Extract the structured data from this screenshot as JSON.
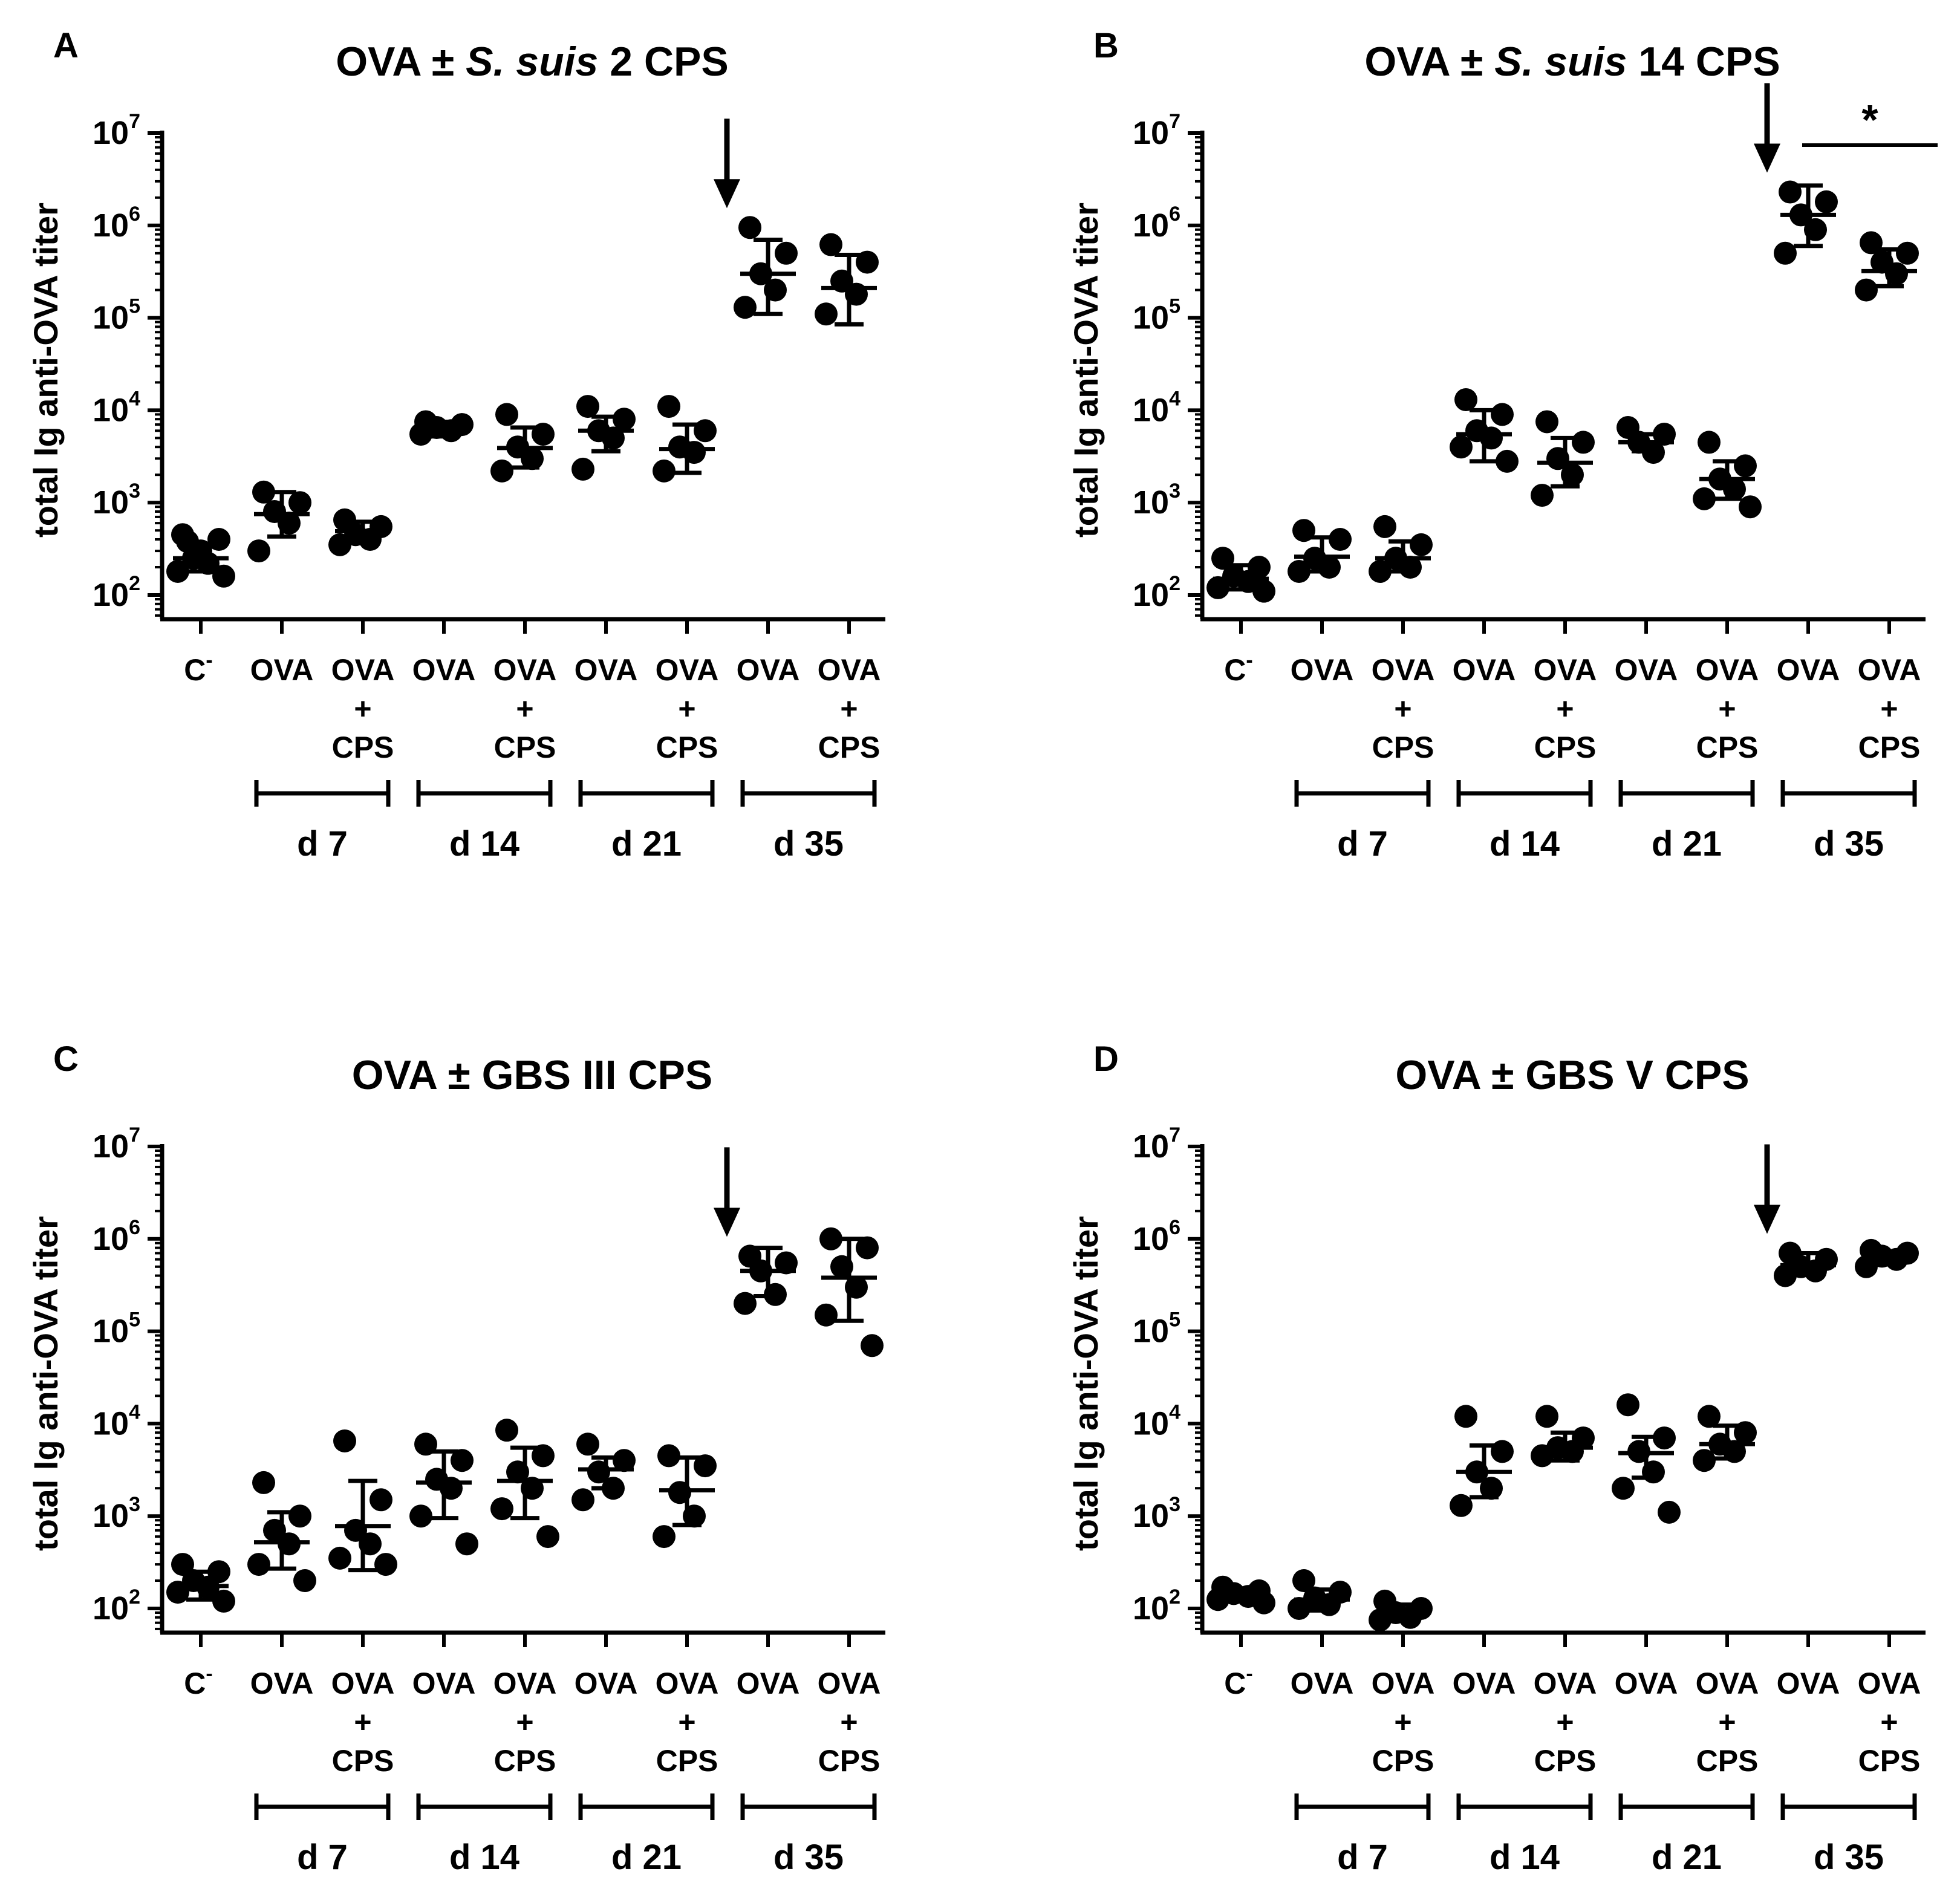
{
  "colors": {
    "ink": "#000000",
    "background": "#ffffff"
  },
  "chart_data": [
    {
      "panel_label": "A",
      "type": "scatter",
      "title_parts": [
        "OVA",
        " ± ",
        "S. suis",
        " 2 CPS"
      ],
      "ylabel": "total Ig anti-OVA titer",
      "yscale": "log10",
      "ylim": [
        50,
        10000000
      ],
      "yticks": [
        {
          "base": "10",
          "exp": "2",
          "value": 100
        },
        {
          "base": "10",
          "exp": "3",
          "value": 1000
        },
        {
          "base": "10",
          "exp": "4",
          "value": 10000
        },
        {
          "base": "10",
          "exp": "5",
          "value": 100000
        },
        {
          "base": "10",
          "exp": "6",
          "value": 1000000
        },
        {
          "base": "10",
          "exp": "7",
          "value": 10000000
        }
      ],
      "categories": [
        {
          "lines": [
            "C",
            "-"
          ],
          "control": true
        },
        {
          "lines": [
            "OVA"
          ]
        },
        {
          "lines": [
            "OVA",
            "+",
            "CPS"
          ]
        },
        {
          "lines": [
            "OVA"
          ]
        },
        {
          "lines": [
            "OVA",
            "+",
            "CPS"
          ]
        },
        {
          "lines": [
            "OVA"
          ]
        },
        {
          "lines": [
            "OVA",
            "+",
            "CPS"
          ]
        },
        {
          "lines": [
            "OVA"
          ]
        },
        {
          "lines": [
            "OVA",
            "+",
            "CPS"
          ]
        }
      ],
      "day_groups": [
        {
          "label": "d 7",
          "from": 1,
          "to": 2
        },
        {
          "label": "d 14",
          "from": 3,
          "to": 4
        },
        {
          "label": "d 21",
          "from": 5,
          "to": 6
        },
        {
          "label": "d 35",
          "from": 7,
          "to": 8
        }
      ],
      "arrow_before": 7,
      "series": [
        {
          "points": [
            450,
            400,
            250,
            220,
            180,
            160,
            300,
            380
          ],
          "center": 250,
          "error": [
            180,
            350
          ]
        },
        {
          "points": [
            1300,
            1000,
            800,
            600,
            300
          ],
          "center": 750,
          "error": [
            430,
            1300
          ]
        },
        {
          "points": [
            650,
            550,
            450,
            400,
            350
          ],
          "center": 490,
          "error": [
            390,
            620
          ]
        },
        {
          "points": [
            7500,
            7000,
            6500,
            6000,
            5500
          ],
          "center": 6300,
          "error": [
            5200,
            7500
          ]
        },
        {
          "points": [
            9000,
            5500,
            4000,
            3000,
            2200
          ],
          "center": 3900,
          "error": [
            2400,
            6500
          ]
        },
        {
          "points": [
            11000,
            8000,
            6000,
            5000,
            2300
          ],
          "center": 6000,
          "error": [
            3600,
            8500
          ]
        },
        {
          "points": [
            11000,
            6000,
            4000,
            3500,
            2200
          ],
          "center": 3800,
          "error": [
            2100,
            7000
          ]
        },
        {
          "points": [
            950000,
            500000,
            300000,
            200000,
            130000
          ],
          "center": 300000,
          "error": [
            110000,
            700000
          ]
        },
        {
          "points": [
            620000,
            400000,
            250000,
            180000,
            110000
          ],
          "center": 210000,
          "error": [
            85000,
            480000
          ]
        }
      ]
    },
    {
      "panel_label": "B",
      "type": "scatter",
      "title_parts": [
        "OVA",
        " ± ",
        "S. suis",
        " 14 CPS"
      ],
      "ylabel": "total Ig anti-OVA titer",
      "yscale": "log10",
      "ylim": [
        50,
        10000000
      ],
      "yticks": [
        {
          "base": "10",
          "exp": "2",
          "value": 100
        },
        {
          "base": "10",
          "exp": "3",
          "value": 1000
        },
        {
          "base": "10",
          "exp": "4",
          "value": 10000
        },
        {
          "base": "10",
          "exp": "5",
          "value": 100000
        },
        {
          "base": "10",
          "exp": "6",
          "value": 1000000
        },
        {
          "base": "10",
          "exp": "7",
          "value": 10000000
        }
      ],
      "categories": [
        {
          "lines": [
            "C",
            "-"
          ],
          "control": true
        },
        {
          "lines": [
            "OVA"
          ]
        },
        {
          "lines": [
            "OVA",
            "+",
            "CPS"
          ]
        },
        {
          "lines": [
            "OVA"
          ]
        },
        {
          "lines": [
            "OVA",
            "+",
            "CPS"
          ]
        },
        {
          "lines": [
            "OVA"
          ]
        },
        {
          "lines": [
            "OVA",
            "+",
            "CPS"
          ]
        },
        {
          "lines": [
            "OVA"
          ]
        },
        {
          "lines": [
            "OVA",
            "+",
            "CPS"
          ]
        }
      ],
      "day_groups": [
        {
          "label": "d 7",
          "from": 1,
          "to": 2
        },
        {
          "label": "d 14",
          "from": 3,
          "to": 4
        },
        {
          "label": "d 21",
          "from": 5,
          "to": 6
        },
        {
          "label": "d 35",
          "from": 7,
          "to": 8
        }
      ],
      "arrow_before": 7,
      "significance": {
        "from": 7,
        "to": 8,
        "label": "*"
      },
      "series": [
        {
          "points": [
            250,
            200,
            160,
            140,
            120,
            110
          ],
          "center": 150,
          "error": [
            115,
            210
          ]
        },
        {
          "points": [
            500,
            400,
            250,
            200,
            180
          ],
          "center": 260,
          "error": [
            180,
            420
          ]
        },
        {
          "points": [
            550,
            350,
            250,
            200,
            180
          ],
          "center": 250,
          "error": [
            180,
            380
          ]
        },
        {
          "points": [
            13000,
            9000,
            6000,
            5000,
            4000,
            2800
          ],
          "center": 5500,
          "error": [
            2800,
            10000
          ]
        },
        {
          "points": [
            7500,
            4500,
            3000,
            2000,
            1200
          ],
          "center": 2700,
          "error": [
            1500,
            5000
          ]
        },
        {
          "points": [
            6500,
            5500,
            4500,
            3500
          ],
          "center": 4500,
          "error": [
            3600,
            5500
          ]
        },
        {
          "points": [
            4500,
            2500,
            1800,
            1400,
            1100,
            900
          ],
          "center": 1800,
          "error": [
            1100,
            2800
          ]
        },
        {
          "points": [
            2300000,
            1800000,
            1300000,
            900000,
            500000
          ],
          "center": 1300000,
          "error": [
            600000,
            2700000
          ]
        },
        {
          "points": [
            650000,
            500000,
            400000,
            300000,
            200000
          ],
          "center": 320000,
          "error": [
            220000,
            550000
          ]
        }
      ]
    },
    {
      "panel_label": "C",
      "type": "scatter",
      "title_parts": [
        "OVA",
        " ± ",
        "GBS III CPS"
      ],
      "ylabel": "total Ig anti-OVA titer",
      "yscale": "log10",
      "ylim": [
        50,
        10000000
      ],
      "yticks": [
        {
          "base": "10",
          "exp": "2",
          "value": 100
        },
        {
          "base": "10",
          "exp": "3",
          "value": 1000
        },
        {
          "base": "10",
          "exp": "4",
          "value": 10000
        },
        {
          "base": "10",
          "exp": "5",
          "value": 100000
        },
        {
          "base": "10",
          "exp": "6",
          "value": 1000000
        },
        {
          "base": "10",
          "exp": "7",
          "value": 10000000
        }
      ],
      "categories": [
        {
          "lines": [
            "C",
            "-"
          ],
          "control": true
        },
        {
          "lines": [
            "OVA"
          ]
        },
        {
          "lines": [
            "OVA",
            "+",
            "CPS"
          ]
        },
        {
          "lines": [
            "OVA"
          ]
        },
        {
          "lines": [
            "OVA",
            "+",
            "CPS"
          ]
        },
        {
          "lines": [
            "OVA"
          ]
        },
        {
          "lines": [
            "OVA",
            "+",
            "CPS"
          ]
        },
        {
          "lines": [
            "OVA"
          ]
        },
        {
          "lines": [
            "OVA",
            "+",
            "CPS"
          ]
        }
      ],
      "day_groups": [
        {
          "label": "d 7",
          "from": 1,
          "to": 2
        },
        {
          "label": "d 14",
          "from": 3,
          "to": 4
        },
        {
          "label": "d 21",
          "from": 5,
          "to": 6
        },
        {
          "label": "d 35",
          "from": 7,
          "to": 8
        }
      ],
      "arrow_before": 7,
      "series": [
        {
          "points": [
            300,
            250,
            200,
            170,
            150,
            120
          ],
          "center": 175,
          "error": [
            125,
            250
          ]
        },
        {
          "points": [
            2300,
            1000,
            700,
            500,
            300,
            200
          ],
          "center": 520,
          "error": [
            270,
            1100
          ]
        },
        {
          "points": [
            6500,
            1500,
            700,
            500,
            350,
            300
          ],
          "center": 780,
          "error": [
            260,
            2400
          ]
        },
        {
          "points": [
            6000,
            4000,
            2500,
            2000,
            1000,
            500
          ],
          "center": 2300,
          "error": [
            950,
            5000
          ]
        },
        {
          "points": [
            8500,
            4500,
            3000,
            2000,
            1200,
            600
          ],
          "center": 2400,
          "error": [
            950,
            5500
          ]
        },
        {
          "points": [
            6000,
            4000,
            3000,
            2000,
            1500
          ],
          "center": 3200,
          "error": [
            2000,
            4300
          ]
        },
        {
          "points": [
            4500,
            3500,
            1800,
            1000,
            600
          ],
          "center": 1900,
          "error": [
            800,
            4300
          ]
        },
        {
          "points": [
            650000,
            550000,
            450000,
            250000,
            200000
          ],
          "center": 450000,
          "error": [
            240000,
            800000
          ]
        },
        {
          "points": [
            1000000,
            800000,
            500000,
            300000,
            150000,
            70000
          ],
          "center": 380000,
          "error": [
            130000,
            1000000
          ]
        }
      ]
    },
    {
      "panel_label": "D",
      "type": "scatter",
      "title_parts": [
        "OVA",
        " ± ",
        "GBS V CPS"
      ],
      "ylabel": "total Ig anti-OVA titer",
      "yscale": "log10",
      "ylim": [
        50,
        10000000
      ],
      "yticks": [
        {
          "base": "10",
          "exp": "2",
          "value": 100
        },
        {
          "base": "10",
          "exp": "3",
          "value": 1000
        },
        {
          "base": "10",
          "exp": "4",
          "value": 10000
        },
        {
          "base": "10",
          "exp": "5",
          "value": 100000
        },
        {
          "base": "10",
          "exp": "6",
          "value": 1000000
        },
        {
          "base": "10",
          "exp": "7",
          "value": 10000000
        }
      ],
      "categories": [
        {
          "lines": [
            "C",
            "-"
          ],
          "control": true
        },
        {
          "lines": [
            "OVA"
          ]
        },
        {
          "lines": [
            "OVA",
            "+",
            "CPS"
          ]
        },
        {
          "lines": [
            "OVA"
          ]
        },
        {
          "lines": [
            "OVA",
            "+",
            "CPS"
          ]
        },
        {
          "lines": [
            "OVA"
          ]
        },
        {
          "lines": [
            "OVA",
            "+",
            "CPS"
          ]
        },
        {
          "lines": [
            "OVA"
          ]
        },
        {
          "lines": [
            "OVA",
            "+",
            "CPS"
          ]
        }
      ],
      "day_groups": [
        {
          "label": "d 7",
          "from": 1,
          "to": 2
        },
        {
          "label": "d 14",
          "from": 3,
          "to": 4
        },
        {
          "label": "d 21",
          "from": 5,
          "to": 6
        },
        {
          "label": "d 35",
          "from": 7,
          "to": 8
        }
      ],
      "arrow_before": 7,
      "series": [
        {
          "points": [
            170,
            155,
            145,
            135,
            125,
            115
          ],
          "center": 140,
          "error": [
            120,
            165
          ]
        },
        {
          "points": [
            200,
            150,
            130,
            110,
            100
          ],
          "center": 125,
          "error": [
            95,
            160
          ]
        },
        {
          "points": [
            120,
            100,
            90,
            80,
            75
          ],
          "center": 92,
          "error": [
            78,
            110
          ]
        },
        {
          "points": [
            12000,
            5000,
            3000,
            2000,
            1300
          ],
          "center": 3000,
          "error": [
            1600,
            5800
          ]
        },
        {
          "points": [
            12000,
            7000,
            5500,
            5000,
            4500
          ],
          "center": 5500,
          "error": [
            4000,
            8000
          ]
        },
        {
          "points": [
            16000,
            7000,
            5000,
            3000,
            2000,
            1100
          ],
          "center": 4800,
          "error": [
            2600,
            7200
          ]
        },
        {
          "points": [
            12000,
            8000,
            6000,
            5000,
            4000
          ],
          "center": 6000,
          "error": [
            4200,
            9500
          ]
        },
        {
          "points": [
            700000,
            600000,
            500000,
            450000,
            400000
          ],
          "center": 520000,
          "error": [
            420000,
            700000
          ]
        },
        {
          "points": [
            750000,
            700000,
            650000,
            600000,
            500000
          ],
          "center": 620000,
          "error": [
            530000,
            720000
          ]
        }
      ]
    }
  ]
}
